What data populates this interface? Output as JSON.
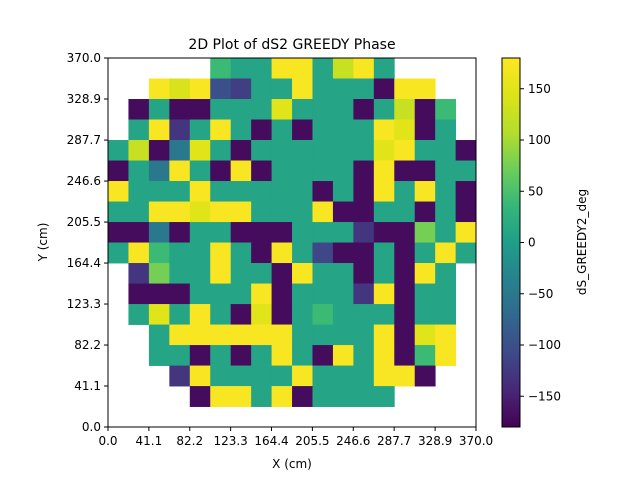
{
  "chart_data": {
    "type": "heatmap",
    "title": "2D Plot of dS2 GREEDY Phase",
    "xlabel": "X (cm)",
    "ylabel": "Y (cm)",
    "colorbar_label": "dS_GREEDY2_deg",
    "colormap": "viridis",
    "xlim": [
      0,
      370
    ],
    "ylim": [
      0,
      370
    ],
    "clim": [
      -180,
      180
    ],
    "xticks": [
      "0.0",
      "41.1",
      "82.2",
      "123.3",
      "164.4",
      "205.5",
      "246.6",
      "287.7",
      "328.9",
      "370.0"
    ],
    "yticks": [
      "0.0",
      "41.1",
      "82.2",
      "123.3",
      "164.4",
      "205.5",
      "246.6",
      "287.7",
      "328.9",
      "370.0"
    ],
    "colorbar_ticks": [
      150,
      100,
      50,
      0,
      -50,
      -100,
      -150
    ],
    "cell_size": 20.56,
    "grid_rows": 18,
    "grid_cols": 18,
    "rows_top_to_bottom": [
      [
        null,
        null,
        null,
        null,
        null,
        40,
        10,
        10,
        175,
        175,
        10,
        125,
        175,
        10,
        null,
        null,
        null,
        null
      ],
      [
        null,
        null,
        175,
        140,
        175,
        -100,
        -120,
        10,
        10,
        175,
        10,
        10,
        10,
        -170,
        175,
        175,
        null,
        null
      ],
      [
        null,
        -170,
        10,
        -170,
        -170,
        10,
        10,
        10,
        150,
        10,
        10,
        10,
        -170,
        10,
        125,
        -170,
        40,
        null
      ],
      [
        null,
        10,
        175,
        -130,
        10,
        175,
        10,
        -170,
        10,
        -170,
        10,
        10,
        10,
        175,
        150,
        -170,
        10,
        null
      ],
      [
        10,
        125,
        -170,
        -50,
        150,
        10,
        -170,
        10,
        10,
        10,
        10,
        10,
        10,
        150,
        175,
        10,
        10,
        -170
      ],
      [
        -170,
        10,
        -50,
        175,
        10,
        -170,
        175,
        -170,
        10,
        10,
        10,
        10,
        -170,
        175,
        -170,
        -170,
        10,
        10
      ],
      [
        175,
        10,
        10,
        10,
        175,
        10,
        10,
        10,
        10,
        10,
        -170,
        10,
        -170,
        175,
        10,
        175,
        10,
        -170
      ],
      [
        10,
        10,
        175,
        175,
        150,
        175,
        175,
        10,
        10,
        10,
        175,
        -170,
        -170,
        10,
        10,
        -170,
        10,
        -170
      ],
      [
        -170,
        -170,
        -50,
        -170,
        10,
        10,
        -170,
        -170,
        -170,
        10,
        10,
        10,
        -130,
        -170,
        -170,
        75,
        10,
        175
      ],
      [
        10,
        175,
        40,
        10,
        10,
        175,
        10,
        -170,
        175,
        10,
        -110,
        -170,
        -170,
        10,
        -170,
        10,
        175,
        10
      ],
      [
        null,
        -130,
        75,
        10,
        10,
        175,
        10,
        10,
        -170,
        175,
        10,
        10,
        -170,
        10,
        -170,
        175,
        10,
        null
      ],
      [
        null,
        -170,
        -170,
        -170,
        10,
        10,
        10,
        175,
        -170,
        10,
        10,
        10,
        -130,
        175,
        -170,
        10,
        10,
        null
      ],
      [
        null,
        10,
        150,
        10,
        175,
        10,
        -170,
        150,
        -170,
        10,
        40,
        10,
        10,
        10,
        -170,
        10,
        10,
        null
      ],
      [
        null,
        null,
        10,
        175,
        175,
        175,
        175,
        175,
        175,
        10,
        10,
        10,
        10,
        175,
        -170,
        150,
        175,
        null
      ],
      [
        null,
        null,
        10,
        10,
        -170,
        10,
        -170,
        10,
        175,
        10,
        -170,
        175,
        10,
        175,
        -170,
        40,
        175,
        null
      ],
      [
        null,
        null,
        null,
        -130,
        175,
        10,
        10,
        10,
        10,
        175,
        10,
        10,
        10,
        175,
        175,
        -170,
        null,
        null
      ],
      [
        null,
        null,
        null,
        null,
        -170,
        175,
        175,
        10,
        175,
        -170,
        10,
        10,
        10,
        10,
        null,
        null,
        null,
        null
      ],
      [
        null,
        null,
        null,
        null,
        null,
        null,
        null,
        null,
        null,
        null,
        null,
        null,
        null,
        null,
        null,
        null,
        null,
        null
      ]
    ]
  }
}
